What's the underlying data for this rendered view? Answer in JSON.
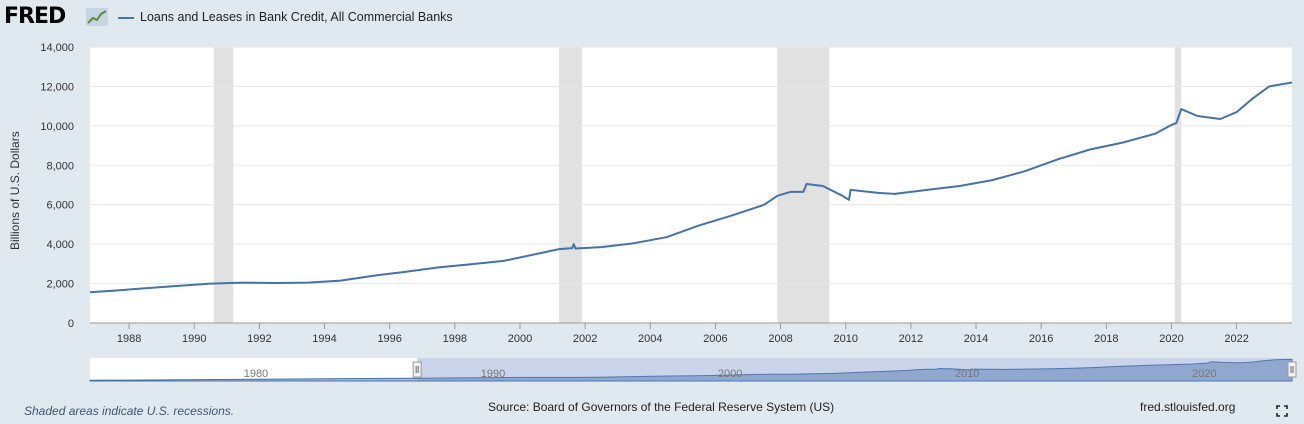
{
  "header": {
    "logo": "FRED",
    "logo_icon": "chart-line-icon"
  },
  "legend": {
    "label": "Loans and Leases in Bank Credit, All Commercial Banks",
    "color": "#4572a7"
  },
  "footer": {
    "recession_note": "Shaded areas indicate U.S. recessions.",
    "source": "Source: Board of Governors of the Federal Reserve System (US)",
    "site": "fred.stlouisfed.org",
    "fullscreen_icon": "fullscreen-icon"
  },
  "navigator": {
    "labels": [
      "1980",
      "1990",
      "2000",
      "2010",
      "2020"
    ],
    "selected_range": [
      1986.8,
      2023.7
    ],
    "full_range": [
      1973,
      2023.7
    ]
  },
  "colors": {
    "line": "#4572a7",
    "recession": "#e1e1e1",
    "background": "#e1e9f0",
    "plot": "#ffffff",
    "grid": "#e6e6e6"
  },
  "chart_data": {
    "type": "line",
    "title": "",
    "xlabel": "",
    "ylabel": "Billions of U.S. Dollars",
    "xlim": [
      1986.8,
      2023.7
    ],
    "ylim": [
      0,
      14000
    ],
    "yticks": [
      0,
      2000,
      4000,
      6000,
      8000,
      10000,
      12000,
      14000
    ],
    "ytick_labels": [
      "0",
      "2,000",
      "4,000",
      "6,000",
      "8,000",
      "10,000",
      "12,000",
      "14,000"
    ],
    "xticks": [
      1988,
      1990,
      1992,
      1994,
      1996,
      1998,
      2000,
      2002,
      2004,
      2006,
      2008,
      2010,
      2012,
      2014,
      2016,
      2018,
      2020,
      2022
    ],
    "grid": true,
    "recessions": [
      [
        1990.6,
        1991.2
      ],
      [
        2001.2,
        2001.9
      ],
      [
        2007.9,
        2009.5
      ],
      [
        2020.1,
        2020.3
      ]
    ],
    "series": [
      {
        "name": "Loans and Leases in Bank Credit, All Commercial Banks",
        "x": [
          1986.8,
          1987.5,
          1988.5,
          1989.5,
          1990.5,
          1991.5,
          1992.5,
          1993.5,
          1994.5,
          1995.5,
          1996.5,
          1997.5,
          1998.5,
          1999.5,
          2000.5,
          2001.2,
          2001.6,
          2001.65,
          2001.7,
          2002.5,
          2003.5,
          2004.5,
          2005.5,
          2006.5,
          2007.5,
          2007.9,
          2008.3,
          2008.7,
          2008.8,
          2009.3,
          2009.9,
          2010.1,
          2010.15,
          2011.0,
          2011.5,
          2012.5,
          2013.5,
          2014.5,
          2015.5,
          2016.5,
          2017.5,
          2018.5,
          2019.5,
          2020.0,
          2020.15,
          2020.3,
          2020.8,
          2021.5,
          2022.0,
          2022.5,
          2023.0,
          2023.7
        ],
        "y": [
          1560,
          1640,
          1760,
          1880,
          2000,
          2050,
          2030,
          2050,
          2150,
          2400,
          2600,
          2820,
          2980,
          3150,
          3500,
          3750,
          3800,
          4000,
          3780,
          3850,
          4050,
          4350,
          4950,
          5450,
          6000,
          6450,
          6650,
          6650,
          7050,
          6950,
          6450,
          6250,
          6750,
          6600,
          6550,
          6750,
          6950,
          7250,
          7700,
          8300,
          8800,
          9150,
          9600,
          10050,
          10150,
          10850,
          10500,
          10350,
          10700,
          11400,
          12000,
          12200
        ]
      }
    ]
  }
}
